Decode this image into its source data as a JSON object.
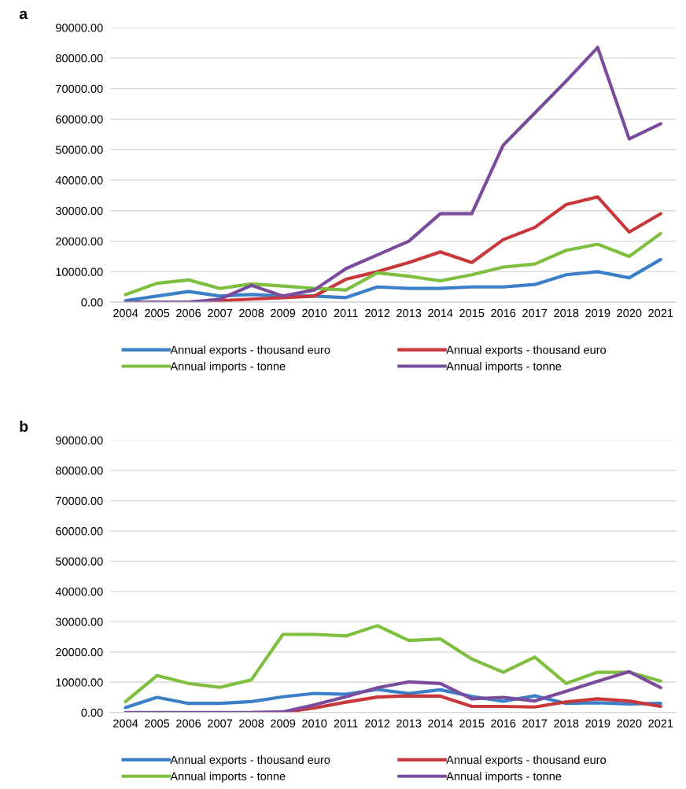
{
  "chart_data": [
    {
      "type": "line",
      "title": "a",
      "categories": [
        "2004",
        "2005",
        "2006",
        "2007",
        "2008",
        "2009",
        "2010",
        "2011",
        "2012",
        "2013",
        "2014",
        "2015",
        "2016",
        "2017",
        "2018",
        "2019",
        "2020",
        "2021"
      ],
      "series": [
        {
          "name": "Annual exports - thousand euro",
          "color": "#3a7fc8",
          "values": [
            500,
            2000,
            3500,
            2000,
            2500,
            2000,
            2000,
            1500,
            5000,
            4500,
            4500,
            5000,
            5000,
            5800,
            9000,
            10000,
            8000,
            14000
          ]
        },
        {
          "name": "Annual exports - thousand euro",
          "color": "#c8383a",
          "values": [
            null,
            null,
            0,
            500,
            1000,
            1500,
            2000,
            7500,
            10000,
            13000,
            16500,
            13000,
            20500,
            24500,
            32000,
            34500,
            23000,
            29000
          ]
        },
        {
          "name": "Annual imports - tonne",
          "color": "#7fbf3f",
          "values": [
            2500,
            6200,
            7300,
            4500,
            6000,
            5300,
            4500,
            4000,
            9600,
            8500,
            7000,
            9000,
            11500,
            12500,
            17000,
            19000,
            15000,
            22500
          ]
        },
        {
          "name": "Annual imports - tonne",
          "color": "#7b4c9c",
          "values": [
            0,
            0,
            0,
            1000,
            5500,
            2000,
            4000,
            11000,
            15500,
            20000,
            29000,
            29000,
            51500,
            62000,
            72500,
            83500,
            53500,
            58500
          ]
        }
      ],
      "ylim": [
        0,
        90000
      ],
      "yticks": [
        {
          "value": 0,
          "label": "0.00"
        },
        {
          "value": 10000,
          "label": "10000.00"
        },
        {
          "value": 20000,
          "label": "20000.00"
        },
        {
          "value": 30000,
          "label": "30000.00"
        },
        {
          "value": 40000,
          "label": "40000.00"
        },
        {
          "value": 50000,
          "label": "50000.00"
        },
        {
          "value": 60000,
          "label": "60000.00"
        },
        {
          "value": 70000,
          "label": "70000.00"
        },
        {
          "value": 80000,
          "label": "80000.00"
        },
        {
          "value": 90000,
          "label": "90000.00"
        }
      ],
      "grid": "y",
      "legend": "bottom"
    },
    {
      "type": "line",
      "title": "b",
      "categories": [
        "2004",
        "2005",
        "2006",
        "2007",
        "2008",
        "2009",
        "2010",
        "2011",
        "2012",
        "2013",
        "2014",
        "2015",
        "2016",
        "2017",
        "2018",
        "2019",
        "2020",
        "2021"
      ],
      "series": [
        {
          "name": "Annual exports - thousand euro",
          "color": "#3a7fc8",
          "values": [
            1600,
            5000,
            3000,
            3000,
            3600,
            5200,
            6300,
            6000,
            7600,
            6300,
            7500,
            5300,
            3700,
            5500,
            3000,
            3200,
            2800,
            3000
          ]
        },
        {
          "name": "Annual exports - thousand euro",
          "color": "#c8383a",
          "values": [
            null,
            null,
            null,
            null,
            0,
            0,
            1500,
            3400,
            5100,
            5500,
            5400,
            2000,
            2000,
            1800,
            3500,
            4500,
            3800,
            2000
          ]
        },
        {
          "name": "Annual imports - tonne",
          "color": "#7fbf3f",
          "values": [
            3600,
            12200,
            9600,
            8300,
            10800,
            25800,
            25800,
            25300,
            28700,
            23800,
            24300,
            17700,
            13300,
            18300,
            9600,
            13300,
            13300,
            10400
          ]
        },
        {
          "name": "Annual imports - tonne",
          "color": "#7b4c9c",
          "values": [
            0,
            0,
            0,
            0,
            0,
            200,
            2500,
            5200,
            8200,
            10100,
            9600,
            4500,
            5000,
            3800,
            7000,
            10300,
            13500,
            8200
          ]
        }
      ],
      "ylim": [
        0,
        90000
      ],
      "yticks": [
        {
          "value": 0,
          "label": "0.00"
        },
        {
          "value": 10000,
          "label": "10000.00"
        },
        {
          "value": 20000,
          "label": "20000.00"
        },
        {
          "value": 30000,
          "label": "30000.00"
        },
        {
          "value": 40000,
          "label": "40000.00"
        },
        {
          "value": 50000,
          "label": "50000.00"
        },
        {
          "value": 60000,
          "label": "60000.00"
        },
        {
          "value": 70000,
          "label": "70000.00"
        },
        {
          "value": 80000,
          "label": "80000.00"
        },
        {
          "value": 90000,
          "label": "90000.00"
        }
      ],
      "grid": "y",
      "legend": "bottom"
    }
  ]
}
